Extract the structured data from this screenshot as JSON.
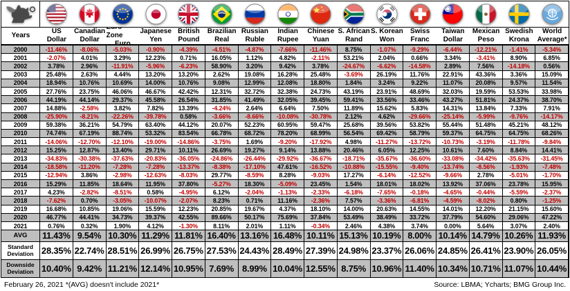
{
  "chart_data": {
    "type": "table",
    "corner_label": "Years",
    "columns": [
      {
        "flag": "us",
        "line1": "US",
        "line2": "Dollar"
      },
      {
        "flag": "canada",
        "line1": "Canadian",
        "line2": "Dollar"
      },
      {
        "flag": "eu",
        "line1": "Euro Zone",
        "line2": "Euro"
      },
      {
        "flag": "japan",
        "line1": "Japanese",
        "line2": "Yen"
      },
      {
        "flag": "uk",
        "line1": "British",
        "line2": "Pound"
      },
      {
        "flag": "brazil",
        "line1": "Brazilian",
        "line2": "Real"
      },
      {
        "flag": "russia",
        "line1": "Russian",
        "line2": "Ruble"
      },
      {
        "flag": "india",
        "line1": "Indian",
        "line2": "Rupee"
      },
      {
        "flag": "china",
        "line1": "Chinese",
        "line2": "Yuan"
      },
      {
        "flag": "south-africa",
        "line1": "S. African",
        "line2": "Rand"
      },
      {
        "flag": "south-korea",
        "line1": "S. Korean",
        "line2": "Won"
      },
      {
        "flag": "switzerland",
        "line1": "Swiss",
        "line2": "Franc"
      },
      {
        "flag": "taiwan",
        "line1": "Taiwan",
        "line2": "Dollar"
      },
      {
        "flag": "mexico",
        "line1": "Mexican",
        "line2": "Peso"
      },
      {
        "flag": "sweden",
        "line1": "Swedish",
        "line2": "Krona"
      },
      {
        "flag": "un",
        "line1": "World",
        "line2": "Average*"
      }
    ],
    "rows": [
      {
        "label": "2000",
        "values": [
          "-11.46%",
          "-8.06%",
          "-5.03%",
          "-0.90%",
          "-4.39%",
          "-4.51%",
          "-4.87%",
          "-7.66%",
          "-11.46%",
          "8.75%",
          "-1.07%",
          "-9.29%",
          "-6.44%",
          "-12.21%",
          "-1.41%",
          "-5.34%"
        ]
      },
      {
        "label": "2001",
        "values": [
          "-2.07%",
          "4.01%",
          "3.29%",
          "12.23%",
          "0.71%",
          "16.05%",
          "1.12%",
          "4.82%",
          "-2.11%",
          "53.21%",
          "2.04%",
          "0.66%",
          "3.34%",
          "-3.41%",
          "8.90%",
          "6.85%"
        ]
      },
      {
        "label": "2002",
        "values": [
          "3.78%",
          "2.96%",
          "-11.91%",
          "-5.96%",
          "-6.23%",
          "58.90%",
          "3.20%",
          "9.42%",
          "3.78%",
          "-24.67%",
          "-6.62%",
          "-14.58%",
          "2.89%",
          "7.56%",
          "-14.18%",
          "0.56%"
        ]
      },
      {
        "label": "2003",
        "values": [
          "25.48%",
          "2.63%",
          "4.44%",
          "13.20%",
          "13.20%",
          "2.62%",
          "19.08%",
          "16.28%",
          "25.48%",
          "-3.69%",
          "26.19%",
          "11.76%",
          "22.91%",
          "43.36%",
          "3.36%",
          "15.09%"
        ]
      },
      {
        "label": "2004",
        "values": [
          "18.94%",
          "10.76%",
          "10.69%",
          "14.00%",
          "10.76%",
          "9.08%",
          "12.99%",
          "12.08%",
          "18.80%",
          "1.84%",
          "3.24%",
          "9.22%",
          "11.07%",
          "20.08%",
          "9.57%",
          "11.54%"
        ]
      },
      {
        "label": "2005",
        "values": [
          "27.76%",
          "23.75%",
          "46.06%",
          "46.67%",
          "42.42%",
          "12.31%",
          "32.72%",
          "32.38%",
          "24.73%",
          "43.19%",
          "23.91%",
          "48.69%",
          "32.03%",
          "19.59%",
          "53.53%",
          "33.98%"
        ]
      },
      {
        "label": "2006",
        "values": [
          "44.19%",
          "44.14%",
          "29.37%",
          "45.58%",
          "26.54%",
          "31.85%",
          "41.49%",
          "32.05%",
          "39.45%",
          "59.41%",
          "33.56%",
          "33.46%",
          "43.27%",
          "51.81%",
          "24.37%",
          "38.70%"
        ]
      },
      {
        "label": "2007",
        "values": [
          "14.88%",
          "-2.58%",
          "3.82%",
          "7.82%",
          "13.39%",
          "-4.24%",
          "2.64%",
          "6.64%",
          "7.50%",
          "11.89%",
          "15.62%",
          "5.83%",
          "14.31%",
          "13.84%",
          "7.33%",
          "7.91%"
        ]
      },
      {
        "label": "2008",
        "values": [
          "-25.90%",
          "-8.21%",
          "-22.26%",
          "-39.78%",
          "0.58%",
          "-3.66%",
          "-8.66%",
          "-10.08%",
          "-30.78%",
          "2.12%",
          "4.62%",
          "-29.66%",
          "-25.14%",
          "-5.99%",
          "-9.76%",
          "-14.17%"
        ]
      },
      {
        "label": "2009",
        "values": [
          "59.38%",
          "36.21%",
          "54.79%",
          "63.40%",
          "44.12%",
          "20.07%",
          "52.23%",
          "60.95%",
          "59.47%",
          "25.68%",
          "39.56%",
          "53.82%",
          "55.44%",
          "51.48%",
          "45.21%",
          "48.12%"
        ]
      },
      {
        "label": "2010",
        "values": [
          "74.74%",
          "67.19%",
          "88.74%",
          "53.32%",
          "83.54%",
          "66.78%",
          "68.72%",
          "78.20%",
          "68.99%",
          "56.54%",
          "69.42%",
          "58.79%",
          "59.37%",
          "64.75%",
          "64.75%",
          "68.26%"
        ]
      },
      {
        "label": "2011",
        "values": [
          "-14.06%",
          "-12.70%",
          "-12.10%",
          "-19.00%",
          "-14.86%",
          "-3.75%",
          "1.69%",
          "-9.20%",
          "-17.92%",
          "4.98%",
          "-11.27%",
          "-13.72%",
          "-10.73%",
          "-3.19%",
          "-11.78%",
          "-9.84%"
        ]
      },
      {
        "label": "2012",
        "values": [
          "15.25%",
          "12.87%",
          "13.40%",
          "29.71%",
          "10.11%",
          "26.69%",
          "19.27%",
          "9.14%",
          "13.88%",
          "20.46%",
          "6.05%",
          "12.25%",
          "10.61%",
          "7.60%",
          "8.84%",
          "14.41%"
        ]
      },
      {
        "label": "2013",
        "values": [
          "-34.83%",
          "-30.38%",
          "-37.63%",
          "-20.83%",
          "-36.05%",
          "-24.86%",
          "-26.44%",
          "-29.92%",
          "-36.67%",
          "-18.71%",
          "-35.67%",
          "-36.60%",
          "-33.08%",
          "-34.42%",
          "-35.63%",
          "-31.45%"
        ]
      },
      {
        "label": "2014",
        "values": [
          "-18.58%",
          "-11.20%",
          "-7.28%",
          "-7.28%",
          "-13.37%",
          "-8.38%",
          "-17.10%",
          "47.61%",
          "-16.52%",
          "-10.88%",
          "-15.55%",
          "-9.40%",
          "-13.74%",
          "-8.56%",
          "-1.93%",
          "-7.48%"
        ]
      },
      {
        "label": "2015",
        "values": [
          "-12.94%",
          "3.86%",
          "-2.98%",
          "-12.63%",
          "-8.03%",
          "29.77%",
          "-8.59%",
          "8.28%",
          "-9.03%",
          "17.27%",
          "-6.14%",
          "-12.52%",
          "-9.66%",
          "2.78%",
          "-5.01%",
          "-1.70%"
        ]
      },
      {
        "label": "2016",
        "values": [
          "15.29%",
          "11.85%",
          "18.64%",
          "11.95%",
          "37.80%",
          "-5.27%",
          "18.30%",
          "-5.09%",
          "23.45%",
          "1.54%",
          "18.01%",
          "18.02%",
          "13.92%",
          "37.06%",
          "23.78%",
          "15.95%"
        ]
      },
      {
        "label": "2017",
        "values": [
          "4.23%",
          "-2.82%",
          "-8.51%",
          "0.58%",
          "-4.95%",
          "6.12%",
          "-2.04%",
          "-1.13%",
          "-2.33%",
          "-6.18%",
          "-7.65%",
          "-0.18%",
          "-4.65%",
          "-0.44%",
          "-5.59%",
          "-2.37%"
        ]
      },
      {
        "label": "2018",
        "values": [
          "-7.62%",
          "0.70%",
          "-3.05%",
          "-10.07%",
          "-2.07%",
          "8.23%",
          "0.71%",
          "11.16%",
          "-2.36%",
          "7.57%",
          "-3.36%",
          "-6.81%",
          "-4.59%",
          "-8.02%",
          "0.80%",
          "-1.25%"
        ]
      },
      {
        "label": "2019",
        "values": [
          "16.68%",
          "10.85%",
          "19.06%",
          "15.59%",
          "12.23%",
          "20.85%",
          "19.67%",
          "4.37%",
          "18.10%",
          "14.00%",
          "20.63%",
          "14.55%",
          "14.01%",
          "12.20%",
          "21.15%",
          "15.60%"
        ]
      },
      {
        "label": "2020",
        "values": [
          "46.77%",
          "44.41%",
          "34.73%",
          "39.37%",
          "42.55%",
          "89.66%",
          "50.17%",
          "75.69%",
          "37.84%",
          "53.49%",
          "38.49%",
          "33.72%",
          "37.79%",
          "54.60%",
          "29.06%",
          "47.22%"
        ]
      },
      {
        "label": "2021",
        "values": [
          "0.76%",
          "0.32%",
          "1.90%",
          "4.12%",
          "-1.30%",
          "8.11%",
          "2.01%",
          "1.11%",
          "-0.34%",
          "2.46%",
          "4.38%",
          "3.74%",
          "0.00%",
          "5.64%",
          "3.07%",
          "2.40%"
        ]
      }
    ],
    "stat_rows": [
      {
        "label": "AVG",
        "values": [
          "11.43%",
          "9.54%",
          "10.30%",
          "11.29%",
          "11.81%",
          "16.40%",
          "13.16%",
          "16.48%",
          "10.11%",
          "15.13%",
          "10.19%",
          "8.00%",
          "10.14%",
          "14.79%",
          "10.26%",
          "11.93%"
        ]
      },
      {
        "label": "Standard Deviation",
        "values": [
          "28.35%",
          "22.74%",
          "28.51%",
          "26.99%",
          "26.75%",
          "27.53%",
          "24.43%",
          "28.49%",
          "27.39%",
          "24.98%",
          "23.37%",
          "26.06%",
          "24.85%",
          "26.41%",
          "23.90%",
          "26.05%"
        ]
      },
      {
        "label": "Downside Deviation",
        "values": [
          "10.40%",
          "9.42%",
          "11.21%",
          "12.14%",
          "10.95%",
          "7.69%",
          "8.99%",
          "10.04%",
          "12.55%",
          "8.75%",
          "10.96%",
          "11.40%",
          "10.34%",
          "10.71%",
          "11.07%",
          "10.44%"
        ]
      }
    ]
  },
  "icons": {
    "logo": "griffin-logo"
  },
  "footer": {
    "left": "February 26, 2021 *(AVG) doesn't include 2021*",
    "right": "Source: LBMA; Ycharts; BMG Group Inc."
  },
  "colors": {
    "negative": "#C00000",
    "positive": "#000000",
    "row_stripe": "#BFBFBF",
    "row_base": "#FFFFFF"
  }
}
